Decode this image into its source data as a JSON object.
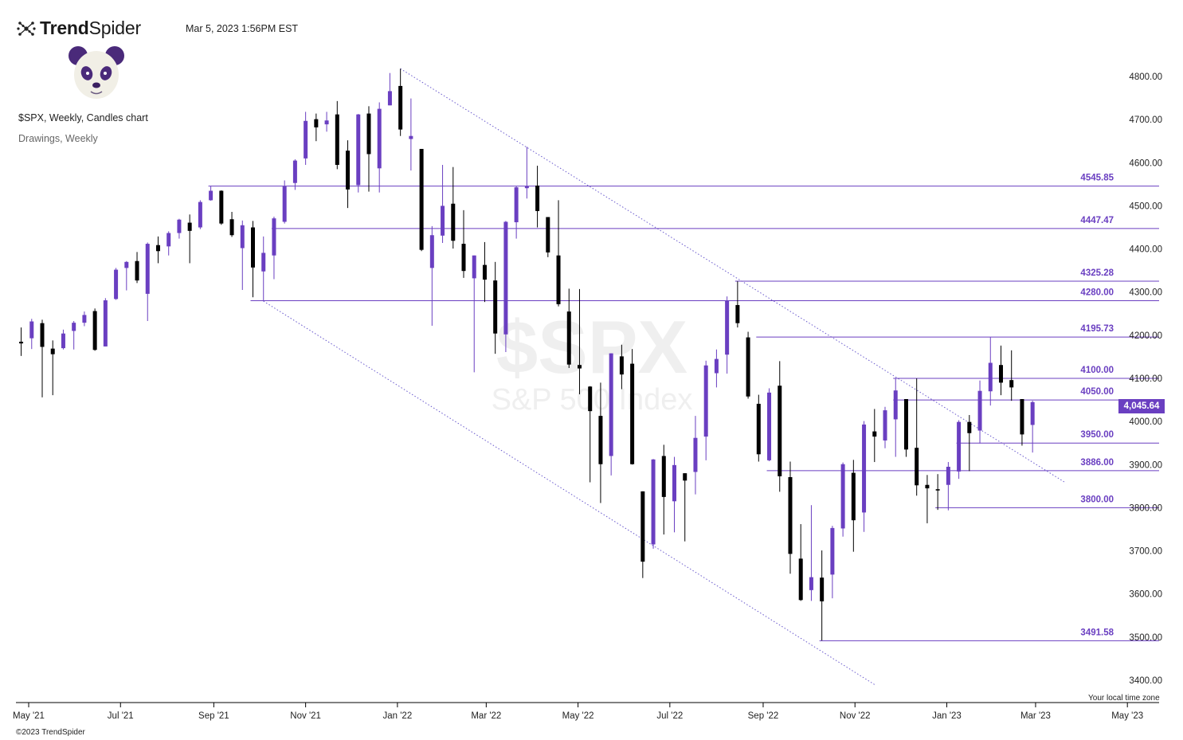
{
  "header": {
    "brand_bold": "Trend",
    "brand_light": "Spider",
    "timestamp": "Mar 5, 2023 1:56PM EST",
    "chart_title": "$SPX, Weekly, Candles chart",
    "chart_subtitle": "Drawings, Weekly"
  },
  "icons": {
    "brand": "trendspider-logo-icon",
    "mascot": "panda-avatar"
  },
  "colors": {
    "up": "#6a3fc1",
    "down": "#000000",
    "level_line": "#6a3fc1",
    "level_label": "#6a3fc1",
    "trend_line": "#6a5acd",
    "price_tag": "#6a3fc1"
  },
  "watermark": {
    "symbol": "$SPX",
    "name": "S&P 500 Index"
  },
  "current_price_label": "4,045.64",
  "footer": {
    "timezone": "Your local time zone",
    "copyright": "©2023 TrendSpider"
  },
  "chart_data": {
    "type": "candlestick",
    "title": "$SPX, Weekly, Candles chart",
    "y_axis": {
      "min": 3400,
      "max": 4800,
      "ticks": [
        "3400.00",
        "3500.00",
        "3600.00",
        "3700.00",
        "3800.00",
        "3900.00",
        "4000.00",
        "4100.00",
        "4200.00",
        "4300.00",
        "4400.00",
        "4500.00",
        "4600.00",
        "4700.00",
        "4800.00"
      ]
    },
    "x_axis": {
      "labels": [
        {
          "label": "May '21",
          "date": "2021-05-01"
        },
        {
          "label": "Jul '21",
          "date": "2021-07-01"
        },
        {
          "label": "Sep '21",
          "date": "2021-09-01"
        },
        {
          "label": "Nov '21",
          "date": "2021-11-01"
        },
        {
          "label": "Jan '22",
          "date": "2022-01-01"
        },
        {
          "label": "Mar '22",
          "date": "2022-03-01"
        },
        {
          "label": "May '22",
          "date": "2022-05-01"
        },
        {
          "label": "Jul '22",
          "date": "2022-07-01"
        },
        {
          "label": "Sep '22",
          "date": "2022-09-01"
        },
        {
          "label": "Nov '22",
          "date": "2022-11-01"
        },
        {
          "label": "Jan '23",
          "date": "2023-01-01"
        },
        {
          "label": "Mar '23",
          "date": "2023-03-01"
        },
        {
          "label": "May '23",
          "date": "2023-05-01"
        }
      ]
    },
    "grid": false,
    "candles": [
      {
        "date": "2021-04-26",
        "o": 4185,
        "h": 4218,
        "l": 4152,
        "c": 4181
      },
      {
        "date": "2021-05-03",
        "o": 4193,
        "h": 4238,
        "l": 4168,
        "c": 4232
      },
      {
        "date": "2021-05-10",
        "o": 4228,
        "h": 4236,
        "l": 4056,
        "c": 4173
      },
      {
        "date": "2021-05-17",
        "o": 4169,
        "h": 4188,
        "l": 4061,
        "c": 4156
      },
      {
        "date": "2021-05-24",
        "o": 4170,
        "h": 4213,
        "l": 4167,
        "c": 4204
      },
      {
        "date": "2021-05-31",
        "o": 4210,
        "h": 4233,
        "l": 4167,
        "c": 4229
      },
      {
        "date": "2021-06-07",
        "o": 4229,
        "h": 4255,
        "l": 4221,
        "c": 4247
      },
      {
        "date": "2021-06-14",
        "o": 4256,
        "h": 4262,
        "l": 4164,
        "c": 4166
      },
      {
        "date": "2021-06-21",
        "o": 4174,
        "h": 4286,
        "l": 4174,
        "c": 4281
      },
      {
        "date": "2021-06-28",
        "o": 4284,
        "h": 4356,
        "l": 4282,
        "c": 4352
      },
      {
        "date": "2021-07-05",
        "o": 4356,
        "h": 4372,
        "l": 4304,
        "c": 4370
      },
      {
        "date": "2021-07-12",
        "o": 4372,
        "h": 4393,
        "l": 4321,
        "c": 4327
      },
      {
        "date": "2021-07-19",
        "o": 4296,
        "h": 4415,
        "l": 4233,
        "c": 4412
      },
      {
        "date": "2021-07-26",
        "o": 4409,
        "h": 4429,
        "l": 4367,
        "c": 4395
      },
      {
        "date": "2021-08-02",
        "o": 4406,
        "h": 4441,
        "l": 4385,
        "c": 4437
      },
      {
        "date": "2021-08-09",
        "o": 4437,
        "h": 4470,
        "l": 4424,
        "c": 4468
      },
      {
        "date": "2021-08-16",
        "o": 4461,
        "h": 4480,
        "l": 4367,
        "c": 4442
      },
      {
        "date": "2021-08-23",
        "o": 4450,
        "h": 4513,
        "l": 4446,
        "c": 4509
      },
      {
        "date": "2021-08-30",
        "o": 4513,
        "h": 4546,
        "l": 4512,
        "c": 4535
      },
      {
        "date": "2021-09-06",
        "o": 4535,
        "h": 4536,
        "l": 4456,
        "c": 4459
      },
      {
        "date": "2021-09-13",
        "o": 4469,
        "h": 4486,
        "l": 4428,
        "c": 4432
      },
      {
        "date": "2021-09-20",
        "o": 4402,
        "h": 4466,
        "l": 4305,
        "c": 4455
      },
      {
        "date": "2021-09-27",
        "o": 4450,
        "h": 4465,
        "l": 4288,
        "c": 4357
      },
      {
        "date": "2021-10-04",
        "o": 4348,
        "h": 4429,
        "l": 4279,
        "c": 4391
      },
      {
        "date": "2021-10-11",
        "o": 4385,
        "h": 4475,
        "l": 4330,
        "c": 4471
      },
      {
        "date": "2021-10-18",
        "o": 4463,
        "h": 4559,
        "l": 4459,
        "c": 4545
      },
      {
        "date": "2021-10-25",
        "o": 4553,
        "h": 4608,
        "l": 4537,
        "c": 4605
      },
      {
        "date": "2021-11-01",
        "o": 4610,
        "h": 4718,
        "l": 4595,
        "c": 4697
      },
      {
        "date": "2021-11-08",
        "o": 4701,
        "h": 4714,
        "l": 4650,
        "c": 4682
      },
      {
        "date": "2021-11-15",
        "o": 4689,
        "h": 4718,
        "l": 4672,
        "c": 4698
      },
      {
        "date": "2021-11-22",
        "o": 4712,
        "h": 4743,
        "l": 4585,
        "c": 4595
      },
      {
        "date": "2021-11-29",
        "o": 4628,
        "h": 4652,
        "l": 4495,
        "c": 4538
      },
      {
        "date": "2021-12-06",
        "o": 4548,
        "h": 4713,
        "l": 4531,
        "c": 4712
      },
      {
        "date": "2021-12-13",
        "o": 4714,
        "h": 4731,
        "l": 4533,
        "c": 4620
      },
      {
        "date": "2021-12-20",
        "o": 4587,
        "h": 4740,
        "l": 4531,
        "c": 4725
      },
      {
        "date": "2021-12-27",
        "o": 4733,
        "h": 4808,
        "l": 4733,
        "c": 4766
      },
      {
        "date": "2022-01-03",
        "o": 4778,
        "h": 4818,
        "l": 4662,
        "c": 4677
      },
      {
        "date": "2022-01-10",
        "o": 4655,
        "h": 4749,
        "l": 4582,
        "c": 4662
      },
      {
        "date": "2022-01-17",
        "o": 4632,
        "h": 4632,
        "l": 4395,
        "c": 4398
      },
      {
        "date": "2022-01-24",
        "o": 4356,
        "h": 4453,
        "l": 4222,
        "c": 4432
      },
      {
        "date": "2022-01-31",
        "o": 4431,
        "h": 4595,
        "l": 4414,
        "c": 4500
      },
      {
        "date": "2022-02-07",
        "o": 4505,
        "h": 4590,
        "l": 4401,
        "c": 4419
      },
      {
        "date": "2022-02-14",
        "o": 4412,
        "h": 4490,
        "l": 4333,
        "c": 4349
      },
      {
        "date": "2022-02-21",
        "o": 4332,
        "h": 4385,
        "l": 4114,
        "c": 4385
      },
      {
        "date": "2022-02-28",
        "o": 4363,
        "h": 4416,
        "l": 4277,
        "c": 4329
      },
      {
        "date": "2022-03-07",
        "o": 4327,
        "h": 4370,
        "l": 4157,
        "c": 4204
      },
      {
        "date": "2022-03-14",
        "o": 4202,
        "h": 4465,
        "l": 4161,
        "c": 4463
      },
      {
        "date": "2022-03-21",
        "o": 4462,
        "h": 4546,
        "l": 4424,
        "c": 4543
      },
      {
        "date": "2022-03-28",
        "o": 4541,
        "h": 4637,
        "l": 4517,
        "c": 4546
      },
      {
        "date": "2022-04-04",
        "o": 4547,
        "h": 4593,
        "l": 4450,
        "c": 4488
      },
      {
        "date": "2022-04-11",
        "o": 4474,
        "h": 4471,
        "l": 4381,
        "c": 4392
      },
      {
        "date": "2022-04-18",
        "o": 4385,
        "h": 4513,
        "l": 4267,
        "c": 4272
      },
      {
        "date": "2022-04-25",
        "o": 4255,
        "h": 4308,
        "l": 4124,
        "c": 4132
      },
      {
        "date": "2022-05-02",
        "o": 4131,
        "h": 4307,
        "l": 4063,
        "c": 4123
      },
      {
        "date": "2022-05-09",
        "o": 4081,
        "h": 4082,
        "l": 3859,
        "c": 4024
      },
      {
        "date": "2022-05-16",
        "o": 4013,
        "h": 4090,
        "l": 3811,
        "c": 3901
      },
      {
        "date": "2022-05-23",
        "o": 3920,
        "h": 4158,
        "l": 3875,
        "c": 4158
      },
      {
        "date": "2022-05-30",
        "o": 4151,
        "h": 4178,
        "l": 4075,
        "c": 4109
      },
      {
        "date": "2022-06-06",
        "o": 4134,
        "h": 4168,
        "l": 3900,
        "c": 3901
      },
      {
        "date": "2022-06-13",
        "o": 3838,
        "h": 3838,
        "l": 3637,
        "c": 3675
      },
      {
        "date": "2022-06-20",
        "o": 3715,
        "h": 3913,
        "l": 3705,
        "c": 3912
      },
      {
        "date": "2022-06-27",
        "o": 3920,
        "h": 3946,
        "l": 3738,
        "c": 3825
      },
      {
        "date": "2022-07-04",
        "o": 3815,
        "h": 3918,
        "l": 3743,
        "c": 3899
      },
      {
        "date": "2022-07-11",
        "o": 3880,
        "h": 3880,
        "l": 3722,
        "c": 3863
      },
      {
        "date": "2022-07-18",
        "o": 3883,
        "h": 4013,
        "l": 3831,
        "c": 3962
      },
      {
        "date": "2022-07-25",
        "o": 3965,
        "h": 4141,
        "l": 3910,
        "c": 4130
      },
      {
        "date": "2022-08-01",
        "o": 4112,
        "h": 4167,
        "l": 4079,
        "c": 4145
      },
      {
        "date": "2022-08-08",
        "o": 4155,
        "h": 4290,
        "l": 4111,
        "c": 4280
      },
      {
        "date": "2022-08-15",
        "o": 4270,
        "h": 4325,
        "l": 4218,
        "c": 4228
      },
      {
        "date": "2022-08-22",
        "o": 4195,
        "h": 4208,
        "l": 4053,
        "c": 4058
      },
      {
        "date": "2022-08-29",
        "o": 4041,
        "h": 4062,
        "l": 3907,
        "c": 3924
      },
      {
        "date": "2022-09-05",
        "o": 3910,
        "h": 4077,
        "l": 3908,
        "c": 4067
      },
      {
        "date": "2022-09-12",
        "o": 4083,
        "h": 4140,
        "l": 3837,
        "c": 3873
      },
      {
        "date": "2022-09-19",
        "o": 3871,
        "h": 3907,
        "l": 3647,
        "c": 3693
      },
      {
        "date": "2022-09-26",
        "o": 3682,
        "h": 3762,
        "l": 3584,
        "c": 3586
      },
      {
        "date": "2022-10-03",
        "o": 3609,
        "h": 3806,
        "l": 3584,
        "c": 3639
      },
      {
        "date": "2022-10-10",
        "o": 3638,
        "h": 3701,
        "l": 3492,
        "c": 3583
      },
      {
        "date": "2022-10-17",
        "o": 3645,
        "h": 3758,
        "l": 3590,
        "c": 3753
      },
      {
        "date": "2022-10-24",
        "o": 3752,
        "h": 3905,
        "l": 3733,
        "c": 3901
      },
      {
        "date": "2022-10-31",
        "o": 3881,
        "h": 3911,
        "l": 3698,
        "c": 3771
      },
      {
        "date": "2022-11-07",
        "o": 3789,
        "h": 4001,
        "l": 3744,
        "c": 3993
      },
      {
        "date": "2022-11-14",
        "o": 3977,
        "h": 4029,
        "l": 3906,
        "c": 3965
      },
      {
        "date": "2022-11-21",
        "o": 3956,
        "h": 4034,
        "l": 3938,
        "c": 4026
      },
      {
        "date": "2022-11-28",
        "o": 4005,
        "h": 4100,
        "l": 3918,
        "c": 4072
      },
      {
        "date": "2022-12-05",
        "o": 4052,
        "h": 4052,
        "l": 3918,
        "c": 3935
      },
      {
        "date": "2022-12-12",
        "o": 3939,
        "h": 4100,
        "l": 3828,
        "c": 3852
      },
      {
        "date": "2022-12-19",
        "o": 3853,
        "h": 3876,
        "l": 3764,
        "c": 3845
      },
      {
        "date": "2022-12-26",
        "o": 3843,
        "h": 3878,
        "l": 3795,
        "c": 3840
      },
      {
        "date": "2023-01-02",
        "o": 3853,
        "h": 3906,
        "l": 3794,
        "c": 3895
      },
      {
        "date": "2023-01-09",
        "o": 3884,
        "h": 4003,
        "l": 3867,
        "c": 3999
      },
      {
        "date": "2023-01-16",
        "o": 3999,
        "h": 4015,
        "l": 3885,
        "c": 3973
      },
      {
        "date": "2023-01-23",
        "o": 3979,
        "h": 4095,
        "l": 3949,
        "c": 4071
      },
      {
        "date": "2023-01-30",
        "o": 4070,
        "h": 4195,
        "l": 4037,
        "c": 4136
      },
      {
        "date": "2023-02-06",
        "o": 4131,
        "h": 4176,
        "l": 4061,
        "c": 4090
      },
      {
        "date": "2023-02-13",
        "o": 4096,
        "h": 4165,
        "l": 4048,
        "c": 4079
      },
      {
        "date": "2023-02-20",
        "o": 4052,
        "h": 4052,
        "l": 3944,
        "c": 3970
      },
      {
        "date": "2023-02-27",
        "o": 3992,
        "h": 4048,
        "l": 3928,
        "c": 4045
      }
    ],
    "levels": [
      {
        "value": 4545.85,
        "label": "4545.85",
        "start": "2021-08-30"
      },
      {
        "value": 4447.47,
        "label": "4447.47",
        "start": "2021-10-11"
      },
      {
        "value": 4325.28,
        "label": "4325.28",
        "start": "2022-08-15"
      },
      {
        "value": 4280.0,
        "label": "4280.00",
        "start": "2021-09-27"
      },
      {
        "value": 4195.73,
        "label": "4195.73",
        "start": "2022-08-29"
      },
      {
        "value": 4100.0,
        "label": "4100.00",
        "start": "2022-11-28"
      },
      {
        "value": 4050.0,
        "label": "4050.00",
        "start": "2022-11-28"
      },
      {
        "value": 3950.0,
        "label": "3950.00",
        "start": "2023-01-09"
      },
      {
        "value": 3886.0,
        "label": "3886.00",
        "start": "2022-09-05"
      },
      {
        "value": 3800.0,
        "label": "3800.00",
        "start": "2022-12-26"
      },
      {
        "value": 3491.58,
        "label": "3491.58",
        "start": "2022-10-10"
      }
    ],
    "trendlines": [
      {
        "from": {
          "date": "2022-01-03",
          "value": 4818
        },
        "to": {
          "date": "2023-03-20",
          "value": 3860
        }
      },
      {
        "from": {
          "date": "2021-10-04",
          "value": 4279
        },
        "to": {
          "date": "2022-11-14",
          "value": 3390
        }
      }
    ],
    "last_price": 4045.64
  }
}
